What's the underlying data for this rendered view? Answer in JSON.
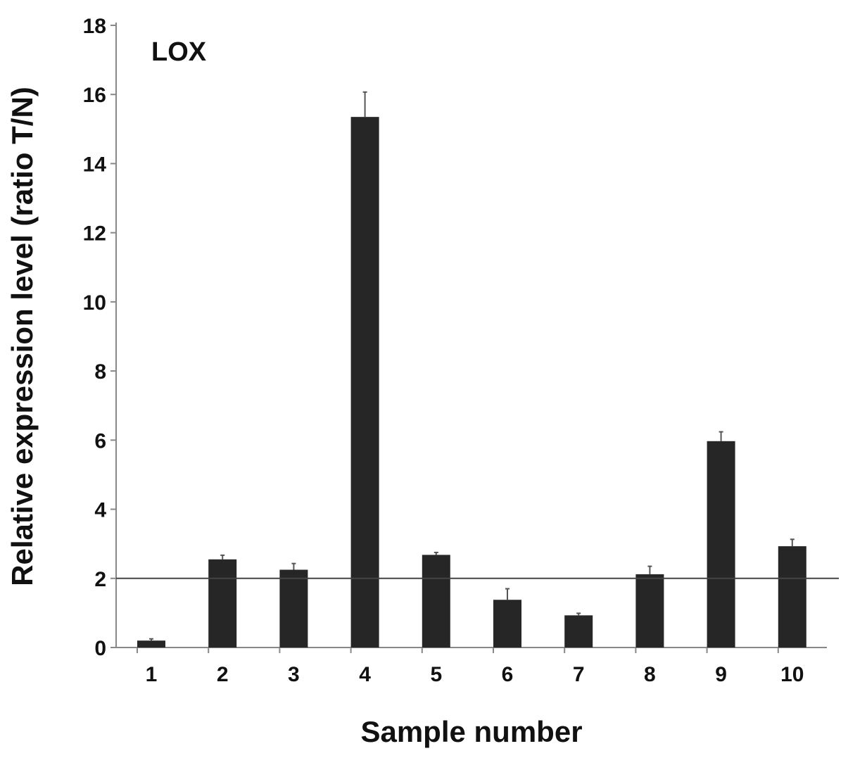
{
  "chart_data": {
    "type": "bar",
    "title": "LOX",
    "xlabel": "Sample number",
    "ylabel": "Relative expression level (ratio T/N)",
    "categories": [
      "1",
      "2",
      "3",
      "4",
      "5",
      "6",
      "7",
      "8",
      "9",
      "10"
    ],
    "values": [
      0.2,
      2.55,
      2.25,
      15.35,
      2.68,
      1.38,
      0.93,
      2.12,
      5.97,
      2.93
    ],
    "errors": [
      0.05,
      0.12,
      0.18,
      0.72,
      0.07,
      0.32,
      0.06,
      0.23,
      0.27,
      0.2
    ],
    "yticks": [
      "0",
      "2",
      "4",
      "6",
      "8",
      "10",
      "12",
      "14",
      "16",
      "18"
    ],
    "ylim": [
      0,
      18
    ],
    "reference_line": 2,
    "grid": false,
    "bar_color": "#262626"
  }
}
